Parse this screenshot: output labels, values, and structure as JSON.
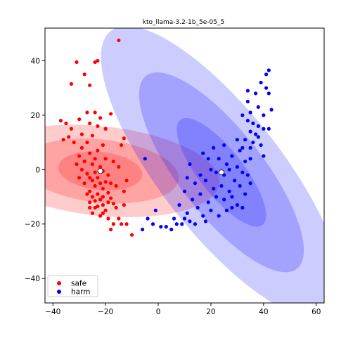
{
  "chart_data": {
    "type": "scatter",
    "title": "kto_llama-3.2-1b_5e-05_5",
    "xlabel": "",
    "ylabel": "",
    "xlim": [
      -43,
      63
    ],
    "ylim": [
      -49,
      52
    ],
    "xticks": [
      -40,
      -20,
      0,
      20,
      40,
      60
    ],
    "yticks": [
      -40,
      -20,
      0,
      20,
      40
    ],
    "grid": false,
    "legend_position": "lower-left",
    "series": [
      {
        "name": "safe",
        "color": "#ff0000",
        "fill": "#ff0000",
        "mean": [
          -22,
          -0.5
        ],
        "ellipses": [
          {
            "width": 14.5,
            "height": 31,
            "angle": -84
          },
          {
            "width": 24,
            "height": 58,
            "angle": -84
          },
          {
            "width": 34,
            "height": 88,
            "angle": -84
          }
        ],
        "points": [
          [
            -15,
            47.5
          ],
          [
            -31,
            39.5
          ],
          [
            -24,
            39.5
          ],
          [
            -28,
            35
          ],
          [
            -23,
            40
          ],
          [
            -33,
            31.5
          ],
          [
            -26,
            31
          ],
          [
            -18,
            20.5
          ],
          [
            -35,
            17
          ],
          [
            -27,
            21
          ],
          [
            -24,
            21
          ],
          [
            -22,
            19
          ],
          [
            -30,
            18.5
          ],
          [
            -20,
            15
          ],
          [
            -37,
            18
          ],
          [
            -33,
            15
          ],
          [
            -26,
            17
          ],
          [
            -23,
            16
          ],
          [
            -29,
            13
          ],
          [
            -34,
            12
          ],
          [
            -25,
            12.5
          ],
          [
            -13,
            11.5
          ],
          [
            -36,
            11
          ],
          [
            -27,
            10
          ],
          [
            -32,
            10
          ],
          [
            -21,
            9
          ],
          [
            -14,
            9
          ],
          [
            -29,
            8
          ],
          [
            -23,
            7
          ],
          [
            -26,
            6
          ],
          [
            -30,
            5
          ],
          [
            -24,
            4
          ],
          [
            -20,
            4
          ],
          [
            -28,
            3
          ],
          [
            -25,
            2
          ],
          [
            -22,
            1
          ],
          [
            -29,
            0
          ],
          [
            -24,
            -1
          ],
          [
            -21,
            -0.5
          ],
          [
            -27,
            -1.5
          ],
          [
            -26,
            -3
          ],
          [
            -23,
            -3
          ],
          [
            -19,
            -2
          ],
          [
            -25,
            -4
          ],
          [
            -22,
            -5
          ],
          [
            -20,
            -4.5
          ],
          [
            -28,
            -5
          ],
          [
            -24,
            -6
          ],
          [
            -21,
            -7
          ],
          [
            -16,
            -6
          ],
          [
            -26,
            -8
          ],
          [
            -23,
            -9
          ],
          [
            -19,
            -8.5
          ],
          [
            -25,
            -10
          ],
          [
            -22,
            -11
          ],
          [
            -18,
            -10.5
          ],
          [
            -13,
            -8
          ],
          [
            -26,
            -12
          ],
          [
            -21,
            -13
          ],
          [
            -17,
            -12.5
          ],
          [
            -24,
            -14
          ],
          [
            -20,
            -15
          ],
          [
            -16,
            -14
          ],
          [
            -22,
            -17
          ],
          [
            -19,
            -18
          ],
          [
            -15,
            -18
          ],
          [
            -13,
            -13
          ],
          [
            -17,
            -20
          ],
          [
            -14,
            -20
          ],
          [
            -12,
            -20
          ],
          [
            -18,
            -22
          ],
          [
            -10,
            -24
          ],
          [
            -23,
            -13.5
          ],
          [
            -25,
            -16
          ],
          [
            -30,
            -3
          ],
          [
            -31,
            2
          ],
          [
            -27,
            -9
          ],
          [
            -21,
            -10
          ],
          [
            -18,
            -5
          ],
          [
            -12,
            -4
          ],
          [
            -15,
            1
          ],
          [
            -17,
            3
          ],
          [
            -24,
            -11.5
          ],
          [
            -26,
            -14
          ],
          [
            -21,
            -16
          ],
          [
            -19,
            -12
          ]
        ]
      },
      {
        "name": "harm",
        "color": "#0000ff",
        "fill": "#0000ff",
        "mean": [
          24,
          -1
        ],
        "ellipses": [
          {
            "width": 17,
            "height": 49,
            "angle": -38
          },
          {
            "width": 32,
            "height": 90,
            "angle": -38
          },
          {
            "width": 46,
            "height": 132,
            "angle": -38
          }
        ],
        "points": [
          [
            42,
            36.5
          ],
          [
            41,
            35
          ],
          [
            39,
            32
          ],
          [
            41,
            30
          ],
          [
            34,
            29
          ],
          [
            37,
            28
          ],
          [
            42,
            28
          ],
          [
            34,
            25
          ],
          [
            38,
            23
          ],
          [
            43,
            22
          ],
          [
            35,
            21
          ],
          [
            40,
            20
          ],
          [
            32,
            20
          ],
          [
            34,
            18
          ],
          [
            36,
            17
          ],
          [
            38,
            16
          ],
          [
            40,
            15
          ],
          [
            42,
            15
          ],
          [
            35,
            14
          ],
          [
            37,
            13
          ],
          [
            33,
            11
          ],
          [
            38,
            12
          ],
          [
            30,
            11
          ],
          [
            36,
            10
          ],
          [
            39,
            9
          ],
          [
            32,
            8
          ],
          [
            35,
            8
          ],
          [
            25,
            9
          ],
          [
            31,
            7
          ],
          [
            21,
            8
          ],
          [
            -5,
            4
          ],
          [
            17,
            6
          ],
          [
            28,
            5
          ],
          [
            35,
            4
          ],
          [
            40,
            5
          ],
          [
            19,
            4
          ],
          [
            23,
            4
          ],
          [
            33,
            3
          ],
          [
            12,
            2
          ],
          [
            26,
            2
          ],
          [
            30,
            1
          ],
          [
            20,
            0
          ],
          [
            22,
            -1
          ],
          [
            27,
            0
          ],
          [
            32,
            -1
          ],
          [
            16,
            -2
          ],
          [
            25,
            -2
          ],
          [
            34,
            -2
          ],
          [
            11,
            -3
          ],
          [
            18,
            -4
          ],
          [
            29,
            -4
          ],
          [
            35,
            -5
          ],
          [
            14,
            -5
          ],
          [
            24,
            -6
          ],
          [
            31,
            -6
          ],
          [
            21,
            -7
          ],
          [
            27,
            -8
          ],
          [
            33,
            -9
          ],
          [
            10,
            -8
          ],
          [
            16,
            -9
          ],
          [
            22,
            -10
          ],
          [
            28,
            -10
          ],
          [
            13,
            -11
          ],
          [
            19,
            -12
          ],
          [
            25,
            -11
          ],
          [
            30,
            -13
          ],
          [
            8,
            -13
          ],
          [
            15,
            -14
          ],
          [
            20,
            -15
          ],
          [
            26,
            -15
          ],
          [
            11,
            -16
          ],
          [
            17,
            -17
          ],
          [
            23,
            -17
          ],
          [
            6,
            -18
          ],
          [
            12,
            -19
          ],
          [
            18,
            -19
          ],
          [
            -1,
            -15
          ],
          [
            -2,
            -20
          ],
          [
            3,
            -21
          ],
          [
            5,
            -22
          ],
          [
            1,
            -21
          ],
          [
            9,
            -20
          ],
          [
            14,
            -20
          ],
          [
            7,
            -20
          ],
          [
            -6,
            -22
          ],
          [
            -4,
            -18
          ],
          [
            10,
            -18
          ],
          [
            28,
            -14
          ],
          [
            32,
            -14
          ]
        ]
      }
    ]
  }
}
